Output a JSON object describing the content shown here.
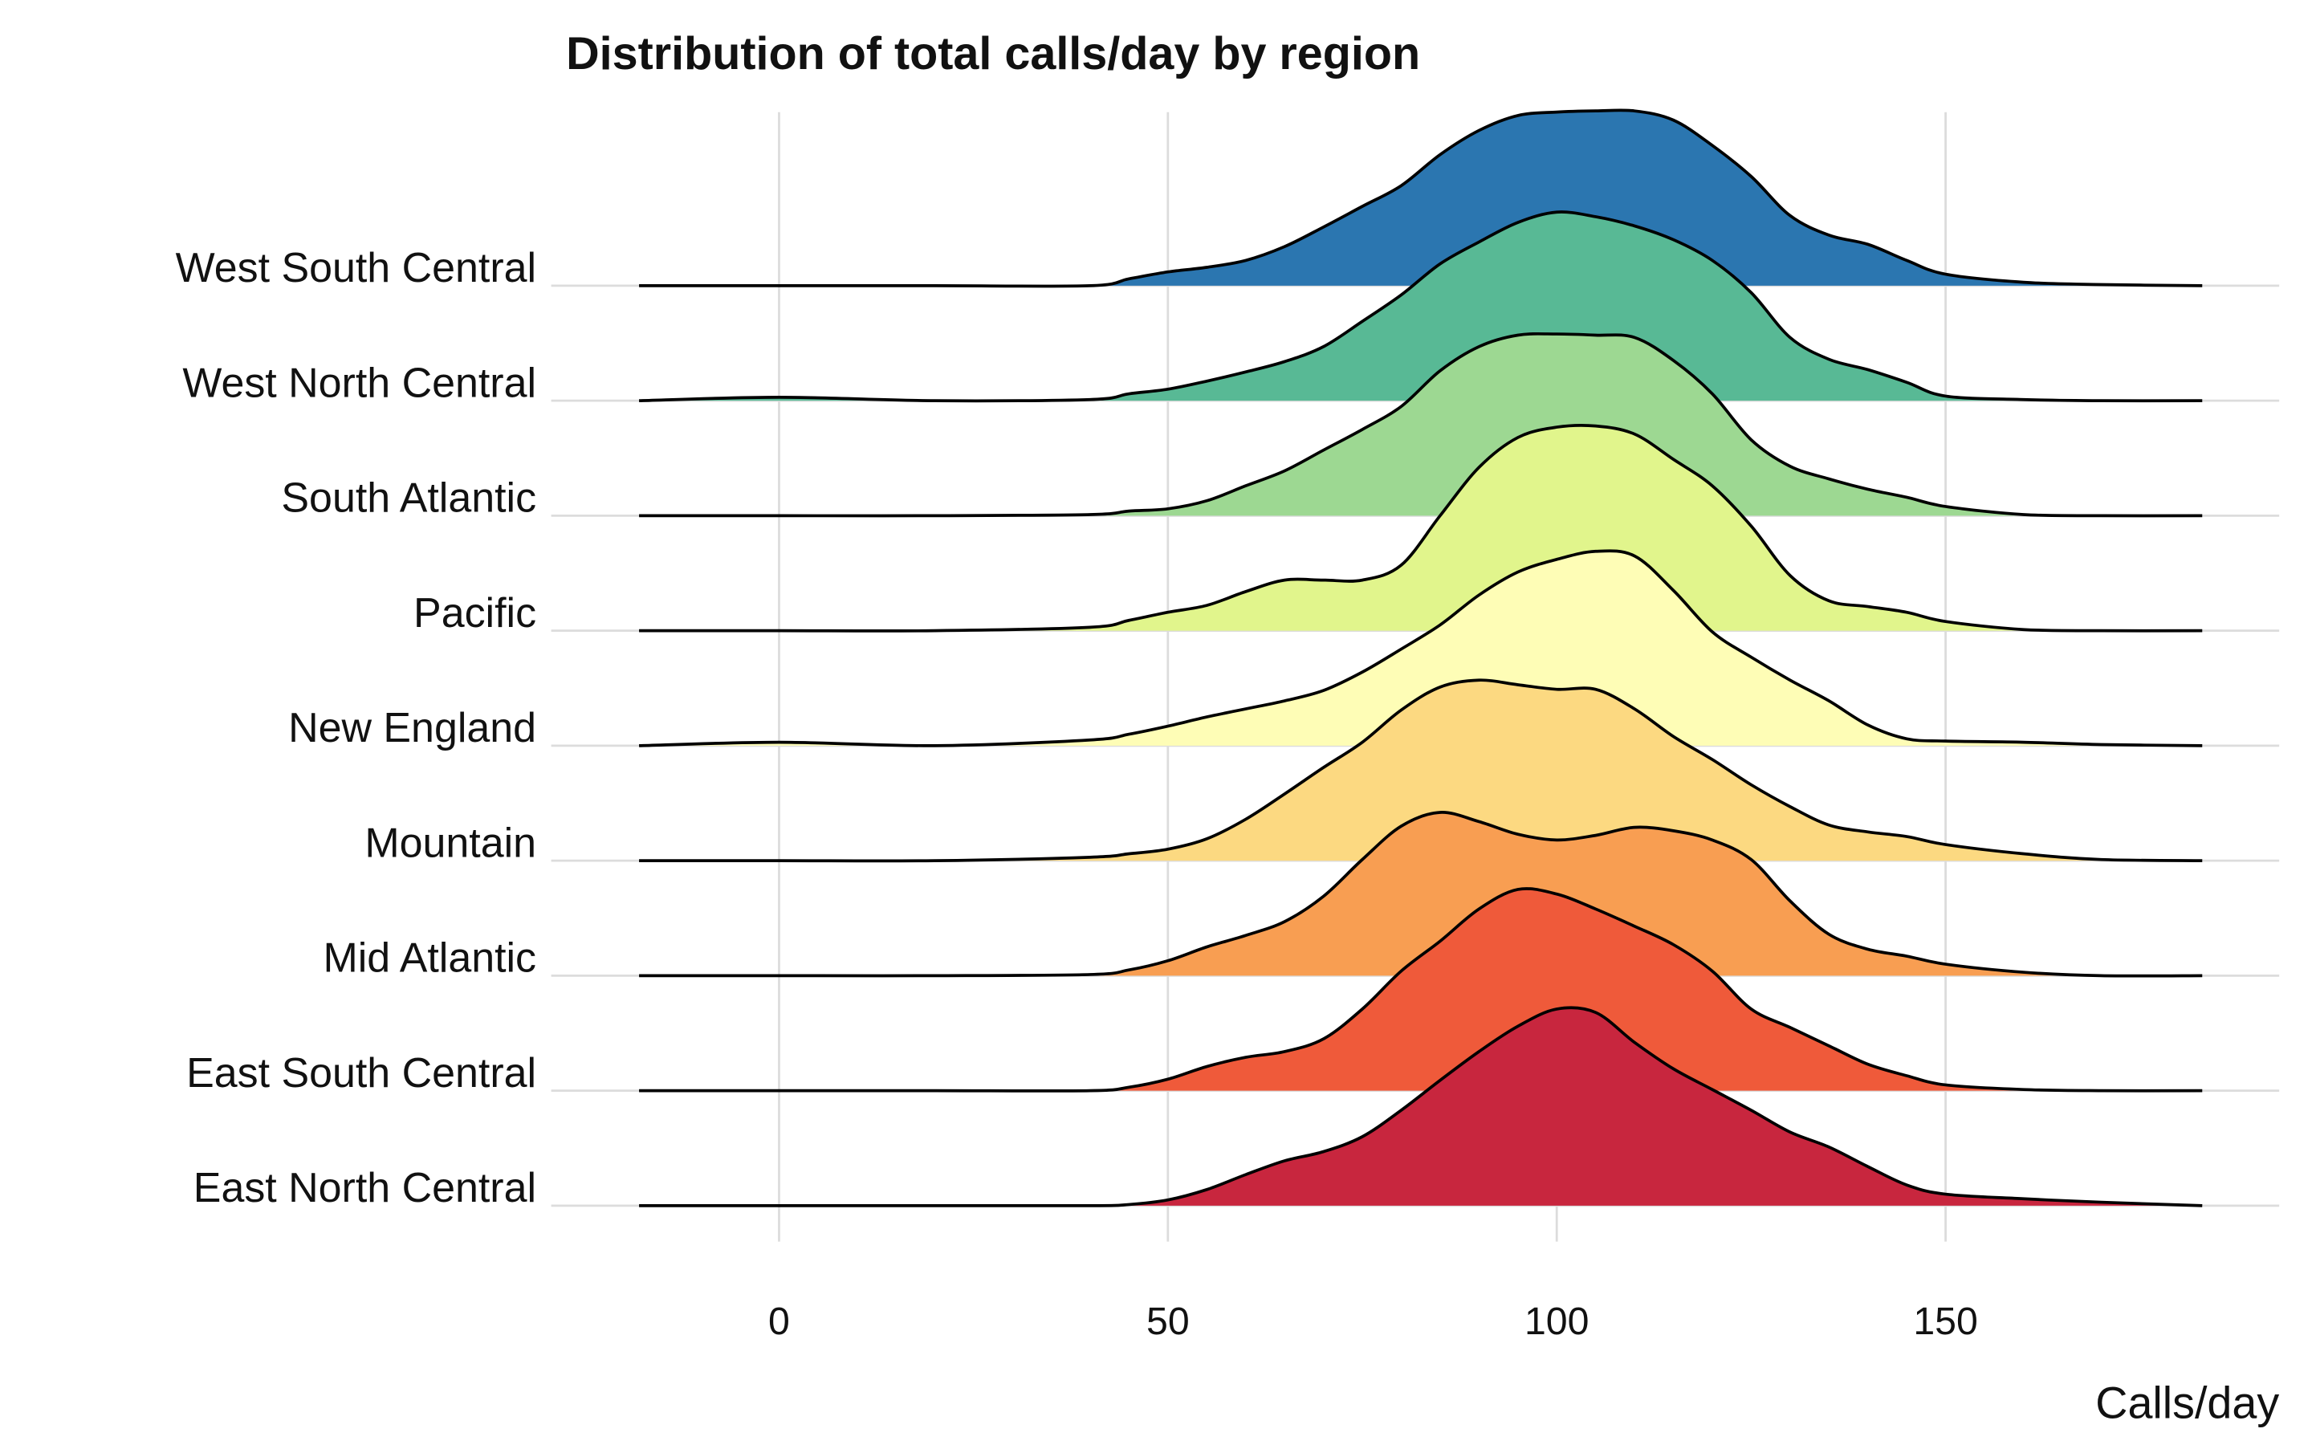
{
  "chart_data": {
    "type": "ridgeline",
    "title": "Distribution of total calls/day by region",
    "x_label": "Calls/day",
    "x": [
      -18,
      0,
      20,
      40,
      45,
      50,
      55,
      60,
      65,
      70,
      75,
      80,
      85,
      90,
      95,
      100,
      105,
      110,
      115,
      120,
      125,
      130,
      135,
      140,
      145,
      150,
      160,
      170,
      183
    ],
    "series": [
      {
        "name": "West South Central",
        "color": "#2b76b0",
        "values": [
          0,
          0,
          0,
          0,
          0.06,
          0.12,
          0.16,
          0.22,
          0.34,
          0.51,
          0.69,
          0.87,
          1.14,
          1.35,
          1.48,
          1.51,
          1.52,
          1.52,
          1.44,
          1.22,
          0.95,
          0.61,
          0.44,
          0.36,
          0.22,
          0.1,
          0.03,
          0.01,
          0
        ]
      },
      {
        "name": "West North Central",
        "color": "#58b995",
        "values": [
          0,
          0.03,
          0,
          0.01,
          0.06,
          0.1,
          0.17,
          0.25,
          0.34,
          0.47,
          0.69,
          0.92,
          1.19,
          1.38,
          1.55,
          1.64,
          1.6,
          1.52,
          1.4,
          1.22,
          0.94,
          0.55,
          0.36,
          0.27,
          0.16,
          0.04,
          0.01,
          0,
          0
        ]
      },
      {
        "name": "South Atlantic",
        "color": "#9dd892",
        "values": [
          0,
          0,
          0,
          0.01,
          0.04,
          0.06,
          0.13,
          0.26,
          0.39,
          0.57,
          0.75,
          0.95,
          1.26,
          1.47,
          1.57,
          1.58,
          1.57,
          1.55,
          1.35,
          1.06,
          0.66,
          0.43,
          0.32,
          0.23,
          0.16,
          0.08,
          0.01,
          0,
          0
        ]
      },
      {
        "name": "Pacific",
        "color": "#e1f58c",
        "values": [
          0,
          0,
          0,
          0.03,
          0.09,
          0.16,
          0.22,
          0.34,
          0.44,
          0.44,
          0.44,
          0.57,
          1.0,
          1.42,
          1.68,
          1.77,
          1.78,
          1.71,
          1.49,
          1.26,
          0.91,
          0.48,
          0.26,
          0.21,
          0.16,
          0.08,
          0.01,
          0,
          0
        ]
      },
      {
        "name": "New England",
        "color": "#fefdb6",
        "values": [
          0,
          0.03,
          0,
          0.05,
          0.1,
          0.17,
          0.25,
          0.32,
          0.39,
          0.48,
          0.64,
          0.84,
          1.05,
          1.31,
          1.51,
          1.62,
          1.69,
          1.65,
          1.35,
          0.99,
          0.77,
          0.57,
          0.39,
          0.18,
          0.06,
          0.04,
          0.03,
          0.01,
          0
        ]
      },
      {
        "name": "Mountain",
        "color": "#fcd981",
        "values": [
          0,
          0,
          0,
          0.03,
          0.06,
          0.1,
          0.19,
          0.36,
          0.58,
          0.81,
          1.03,
          1.31,
          1.51,
          1.57,
          1.53,
          1.49,
          1.49,
          1.32,
          1.08,
          0.88,
          0.66,
          0.47,
          0.31,
          0.25,
          0.21,
          0.14,
          0.06,
          0.01,
          0
        ]
      },
      {
        "name": "Mid Atlantic",
        "color": "#f89e52",
        "values": [
          0,
          0,
          0,
          0.01,
          0.05,
          0.13,
          0.25,
          0.35,
          0.47,
          0.69,
          1.01,
          1.3,
          1.42,
          1.34,
          1.23,
          1.18,
          1.22,
          1.29,
          1.26,
          1.18,
          1.01,
          0.65,
          0.36,
          0.23,
          0.17,
          0.1,
          0.03,
          0,
          0
        ]
      },
      {
        "name": "East South Central",
        "color": "#ef5a3a",
        "values": [
          0,
          0,
          0,
          0,
          0.03,
          0.1,
          0.21,
          0.29,
          0.34,
          0.45,
          0.71,
          1.04,
          1.3,
          1.58,
          1.75,
          1.71,
          1.58,
          1.43,
          1.27,
          1.04,
          0.71,
          0.55,
          0.39,
          0.23,
          0.13,
          0.05,
          0.01,
          0,
          0
        ]
      },
      {
        "name": "East North Central",
        "color": "#c8263e",
        "values": [
          0,
          0,
          0,
          0,
          0.01,
          0.05,
          0.14,
          0.27,
          0.39,
          0.47,
          0.6,
          0.83,
          1.09,
          1.34,
          1.56,
          1.71,
          1.68,
          1.42,
          1.19,
          1.01,
          0.83,
          0.64,
          0.51,
          0.34,
          0.18,
          0.1,
          0.06,
          0.03,
          0
        ]
      }
    ],
    "xlim": [
      -29.3,
      192.9
    ],
    "xticks": [
      0,
      50,
      100,
      150
    ],
    "grid": true
  }
}
